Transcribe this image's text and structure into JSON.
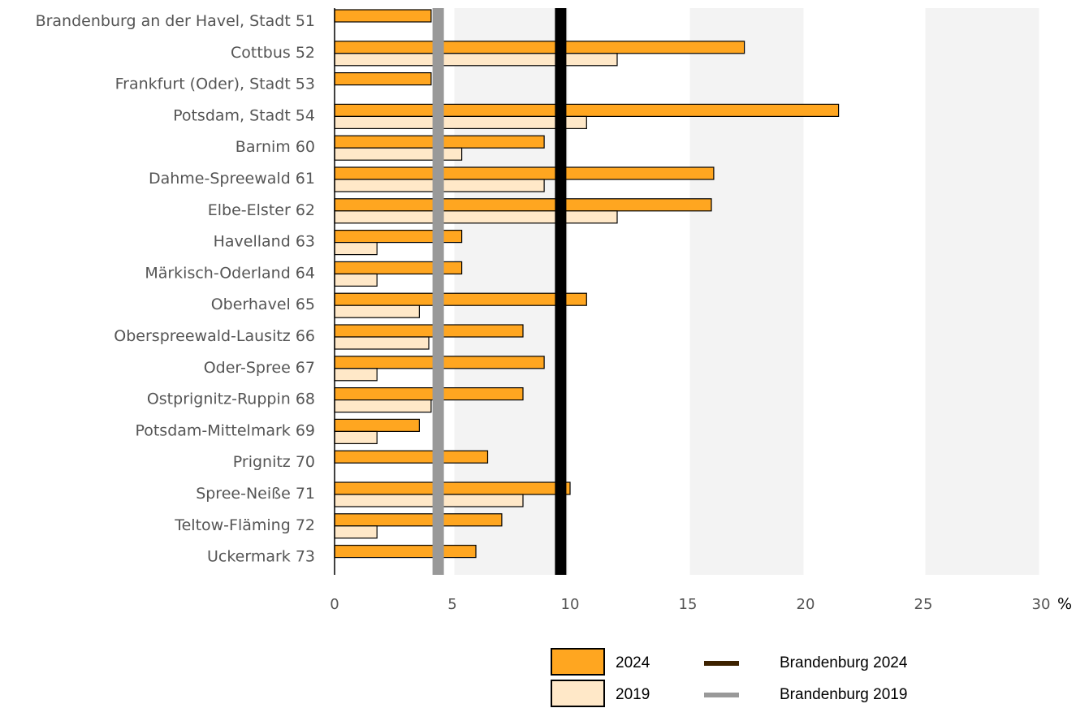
{
  "chart_data": {
    "type": "bar",
    "orientation": "horizontal",
    "categories": [
      "Brandenburg an der Havel, Stadt 51",
      "Cottbus 52",
      "Frankfurt (Oder), Stadt 53",
      "Potsdam, Stadt 54",
      "Barnim 60",
      "Dahme-Spreewald 61",
      "Elbe-Elster 62",
      "Havelland 63",
      "Märkisch-Oderland 64",
      "Oberhavel 65",
      "Oberspreewald-Lausitz 66",
      "Oder-Spree 67",
      "Ostprignitz-Ruppin 68",
      "Potsdam-Mittelmark 69",
      "Prignitz 70",
      "Spree-Neiße 71",
      "Teltow-Fläming 72",
      "Uckermark 73"
    ],
    "series": [
      {
        "name": "2024",
        "color": "#FFA620",
        "values": [
          4.1,
          17.4,
          4.1,
          21.4,
          8.9,
          16.1,
          16.0,
          5.4,
          5.4,
          10.7,
          8.0,
          8.9,
          8.0,
          3.6,
          6.5,
          10.0,
          7.1,
          6.0
        ]
      },
      {
        "name": "2019",
        "color": "#FFE8C8",
        "values": [
          0,
          12.0,
          0,
          10.7,
          5.4,
          8.9,
          12.0,
          1.8,
          1.8,
          3.6,
          4.0,
          1.8,
          4.1,
          1.8,
          0,
          8.0,
          1.8,
          0
        ]
      }
    ],
    "reference_lines": [
      {
        "name": "Brandenburg 2024",
        "value": 9.6,
        "color": "#000000",
        "legend_color": "#3D2200"
      },
      {
        "name": "Brandenburg 2019",
        "value": 4.4,
        "color": "#999999",
        "legend_color": "#999999"
      }
    ],
    "xlim": [
      0,
      30
    ],
    "xticks": [
      "0",
      "5",
      "10",
      "15",
      "20",
      "25",
      "30"
    ],
    "xunit": "%",
    "grid": true,
    "legend_position": "bottom-right"
  }
}
